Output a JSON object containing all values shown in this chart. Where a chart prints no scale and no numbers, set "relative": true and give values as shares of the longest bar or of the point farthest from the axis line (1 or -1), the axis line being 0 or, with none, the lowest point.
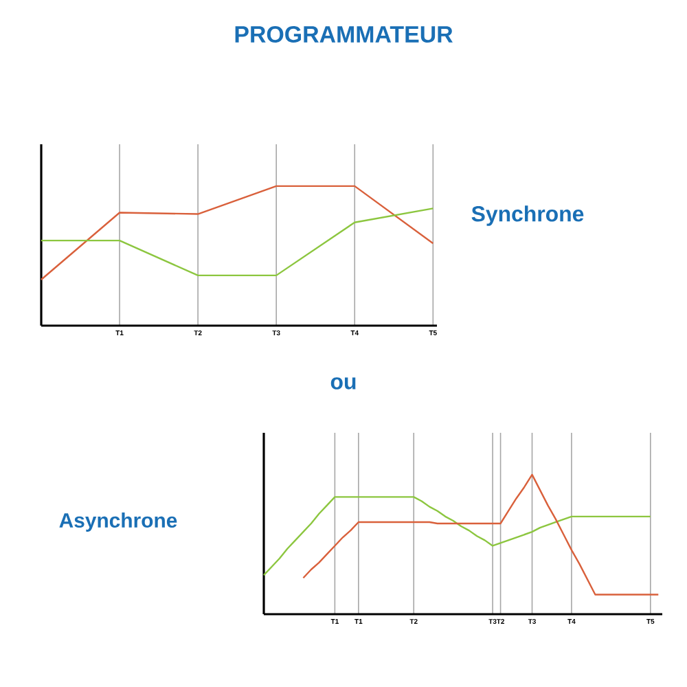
{
  "chart_data": [
    {
      "type": "line",
      "title": "PROGRAMMATEUR",
      "annotations": [
        "Synchrone"
      ],
      "relative": true,
      "grid": "x",
      "categories": [
        null,
        "T1",
        "T2",
        "T3",
        "T4",
        "T5"
      ],
      "series": [
        {
          "color": "#d9603b",
          "values": [
            0.33,
            0.81,
            0.8,
            1,
            1,
            0.59
          ]
        },
        {
          "color": "#8cc63f",
          "values": [
            0.61,
            0.61,
            0.36,
            0.36,
            0.74,
            0.84
          ]
        }
      ]
    },
    {
      "type": "line",
      "title": "Asynchrone",
      "annotations": [
        "ou"
      ],
      "relative": true,
      "grid": "x",
      "categories": [
        null,
        null,
        null,
        null,
        null,
        null,
        null,
        null,
        null,
        "T1",
        null,
        null,
        "T1",
        null,
        null,
        null,
        null,
        null,
        null,
        "T2",
        null,
        null,
        null,
        null,
        null,
        null,
        null,
        null,
        null,
        "T3",
        "T2",
        null,
        null,
        null,
        "T3",
        null,
        null,
        null,
        null,
        "T4",
        null,
        null,
        null,
        null,
        null,
        null,
        null,
        null,
        null,
        "T5",
        null
      ],
      "series": [
        {
          "color": "#8cc63f",
          "values": [
            0.28,
            0.34,
            0.4,
            0.47,
            0.53,
            0.59,
            0.65,
            0.72,
            0.78,
            0.84,
            0.84,
            0.84,
            0.84,
            0.84,
            0.84,
            0.84,
            0.84,
            0.84,
            0.84,
            0.84,
            0.81,
            0.77,
            0.74,
            0.7,
            0.67,
            0.63,
            0.6,
            0.56,
            0.53,
            0.49,
            0.51,
            0.53,
            0.55,
            0.57,
            0.59,
            0.62,
            0.64,
            0.66,
            0.68,
            0.7,
            0.7,
            0.7,
            0.7,
            0.7,
            0.7,
            0.7,
            0.7,
            0.7,
            0.7,
            0.7,
            null
          ]
        },
        {
          "color": "#d9603b",
          "values": [
            null,
            null,
            null,
            null,
            null,
            0.26,
            0.32,
            0.37,
            0.43,
            0.49,
            0.55,
            0.6,
            0.66,
            0.66,
            0.66,
            0.66,
            0.66,
            0.66,
            0.66,
            0.66,
            0.66,
            0.66,
            0.65,
            0.65,
            0.65,
            0.65,
            0.65,
            0.65,
            0.65,
            0.65,
            0.65,
            0.74,
            0.83,
            0.91,
            1,
            0.89,
            0.78,
            0.68,
            0.57,
            0.46,
            0.36,
            0.25,
            0.14,
            0.14,
            0.14,
            0.14,
            0.14,
            0.14,
            0.14,
            0.14,
            0.14
          ]
        }
      ]
    }
  ]
}
